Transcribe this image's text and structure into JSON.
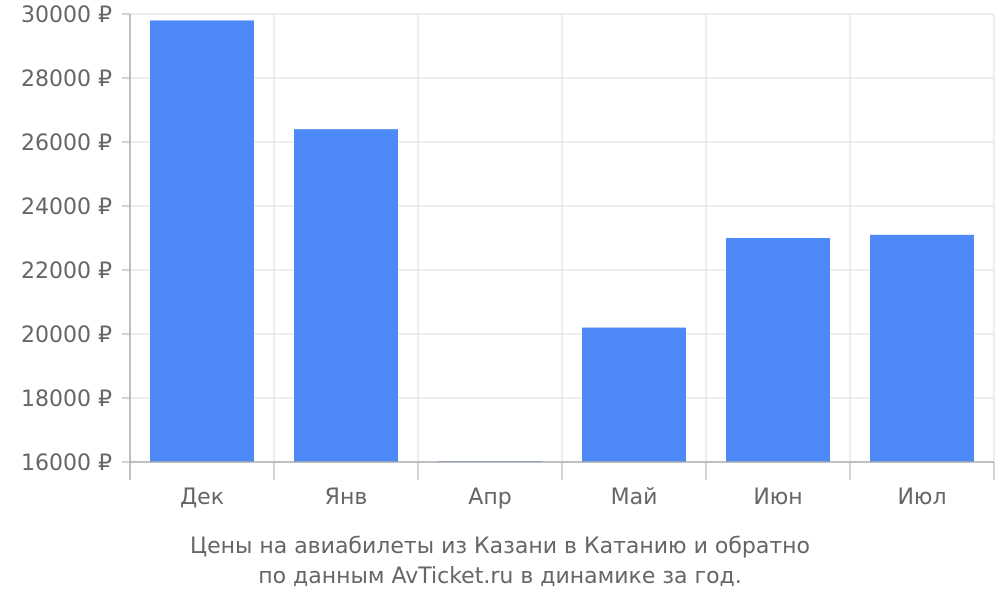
{
  "chart_data": {
    "type": "bar",
    "categories": [
      "Дек",
      "Янв",
      "Апр",
      "Май",
      "Июн",
      "Июл"
    ],
    "values": [
      29800,
      26400,
      16000,
      20200,
      23000,
      23100
    ],
    "ylim": [
      16000,
      30000
    ],
    "y_ticks": [
      16000,
      18000,
      20000,
      22000,
      24000,
      26000,
      28000,
      30000
    ],
    "y_tick_suffix": " ₽",
    "grid": true,
    "bar_color": "#4d89f9",
    "grid_color": "#dddddd",
    "axis_color": "#aaaaaa",
    "tick_label_color": "#666666",
    "caption_lines": [
      "Цены на авиабилеты из Казани в Катанию и обратно",
      "по данным AvTicket.ru в динамике за год."
    ]
  }
}
